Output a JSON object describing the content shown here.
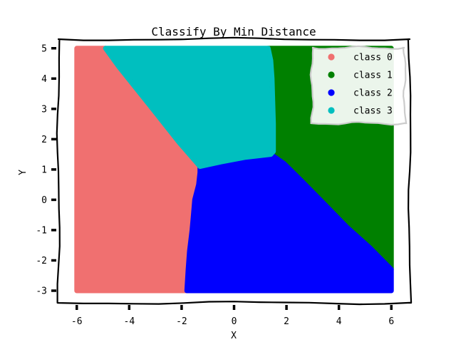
{
  "chart_data": {
    "type": "scatter",
    "title": "Classify By Min Distance",
    "xlabel": "X",
    "ylabel": "Y",
    "xlim": [
      -6.7,
      6.7
    ],
    "ylim": [
      -3.4,
      5.3
    ],
    "x_ticks": [
      -6,
      -4,
      -2,
      0,
      2,
      4,
      6
    ],
    "y_ticks": [
      -3,
      -2,
      -1,
      0,
      1,
      2,
      3,
      4,
      5
    ],
    "grid": false,
    "legend_position": "top-right",
    "series": [
      {
        "name": "class 0",
        "color": "#f07070",
        "region": [
          [
            -6,
            5
          ],
          [
            -4.9,
            5
          ],
          [
            -4.4,
            4.4
          ],
          [
            -3.2,
            3.1
          ],
          [
            -2.1,
            1.9
          ],
          [
            -1.3,
            1.1
          ],
          [
            -1.3,
            0.9
          ],
          [
            -1.35,
            0.5
          ],
          [
            -1.5,
            0
          ],
          [
            -1.55,
            -0.5
          ],
          [
            -1.6,
            -1
          ],
          [
            -1.7,
            -1.7
          ],
          [
            -1.75,
            -2.3
          ],
          [
            -1.8,
            -3
          ],
          [
            -6,
            -3
          ]
        ]
      },
      {
        "name": "class 1",
        "color": "#008000",
        "region": [
          [
            1.3,
            5
          ],
          [
            6,
            5
          ],
          [
            6,
            -2.3
          ],
          [
            5.2,
            -1.6
          ],
          [
            4.3,
            -0.9
          ],
          [
            3.4,
            -0.1
          ],
          [
            2.6,
            0.6
          ],
          [
            1.9,
            1.2
          ],
          [
            1.5,
            1.6
          ],
          [
            1.5,
            2.5
          ],
          [
            1.45,
            4
          ],
          [
            1.4,
            4.6
          ]
        ]
      },
      {
        "name": "class 2",
        "color": "#0000ff",
        "region": [
          [
            -1.3,
            1.1
          ],
          [
            -0.5,
            1.25
          ],
          [
            0.4,
            1.4
          ],
          [
            1.4,
            1.5
          ],
          [
            1.9,
            1.2
          ],
          [
            2.6,
            0.6
          ],
          [
            3.4,
            -0.1
          ],
          [
            4.3,
            -0.9
          ],
          [
            5.2,
            -1.6
          ],
          [
            6,
            -2.3
          ],
          [
            6,
            -3
          ],
          [
            -1.8,
            -3
          ],
          [
            -1.75,
            -2.3
          ],
          [
            -1.7,
            -1.7
          ],
          [
            -1.6,
            -1
          ],
          [
            -1.55,
            -0.5
          ],
          [
            -1.5,
            0
          ],
          [
            -1.35,
            0.5
          ],
          [
            -1.3,
            0.9
          ]
        ]
      },
      {
        "name": "class 3",
        "color": "#00bfbf",
        "region": [
          [
            -4.9,
            5
          ],
          [
            1.3,
            5
          ],
          [
            1.4,
            4.6
          ],
          [
            1.45,
            4
          ],
          [
            1.5,
            2.5
          ],
          [
            1.5,
            1.6
          ],
          [
            1.4,
            1.5
          ],
          [
            0.4,
            1.4
          ],
          [
            -0.5,
            1.25
          ],
          [
            -1.3,
            1.1
          ],
          [
            -2.1,
            1.9
          ],
          [
            -3.2,
            3.1
          ],
          [
            -4.4,
            4.4
          ]
        ]
      }
    ]
  }
}
